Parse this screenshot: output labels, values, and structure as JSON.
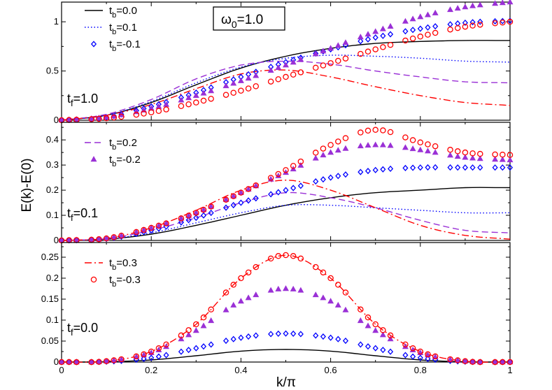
{
  "chart_data": {
    "type": "line",
    "ylabel": "E(k)-E(0)",
    "xlabel": "k/π",
    "omega_box": {
      "text": "ω",
      "sub": "0",
      "tail": "=1.0"
    },
    "x_range": [
      0,
      1
    ],
    "x_ticks": [
      "0",
      "0.2",
      "0.4",
      "0.6",
      "0.8",
      "1"
    ],
    "x_tick_values": [
      0,
      0.2,
      0.4,
      0.6,
      0.8,
      1
    ],
    "panels": [
      {
        "label": {
          "text": "t",
          "sub": "f",
          "tail": "=1.0"
        },
        "ylim": [
          0,
          1.2
        ],
        "y_ticks": [
          "0",
          "0.5",
          "1"
        ],
        "y_tick_values": [
          0,
          0.5,
          1
        ],
        "legend": [
          {
            "series": "tb0",
            "text": "t",
            "sub": "b",
            "tail": "=0.0"
          },
          {
            "series": "tb01",
            "text": "t",
            "sub": "b",
            "tail": "=0.1"
          },
          {
            "series": "tbm01",
            "text": "t",
            "sub": "b",
            "tail": "=-0.1"
          }
        ],
        "series": [
          {
            "id": "tb0",
            "x": [
              0,
              0.1,
              0.2,
              0.3,
              0.4,
              0.5,
              0.6,
              0.7,
              0.8,
              0.9,
              1.0
            ],
            "y": [
              0,
              0.05,
              0.18,
              0.36,
              0.53,
              0.65,
              0.73,
              0.78,
              0.8,
              0.81,
              0.81
            ]
          },
          {
            "id": "tb01",
            "x": [
              0,
              0.1,
              0.2,
              0.3,
              0.4,
              0.5,
              0.6,
              0.7,
              0.8,
              0.9,
              1.0
            ],
            "y": [
              0,
              0.05,
              0.19,
              0.38,
              0.54,
              0.63,
              0.66,
              0.65,
              0.63,
              0.6,
              0.59
            ]
          },
          {
            "id": "tbm01",
            "x": [
              0,
              0.1,
              0.2,
              0.3,
              0.4,
              0.5,
              0.6,
              0.7,
              0.8,
              0.9,
              1.0
            ],
            "y": [
              0,
              0.03,
              0.14,
              0.28,
              0.44,
              0.59,
              0.72,
              0.84,
              0.93,
              0.99,
              1.01
            ]
          },
          {
            "id": "tb02",
            "x": [
              0,
              0.1,
              0.2,
              0.3,
              0.4,
              0.5,
              0.6,
              0.7,
              0.8,
              0.9,
              1.0
            ],
            "y": [
              0,
              0.06,
              0.21,
              0.42,
              0.56,
              0.6,
              0.57,
              0.5,
              0.44,
              0.39,
              0.38
            ]
          },
          {
            "id": "tbm02",
            "x": [
              0,
              0.1,
              0.2,
              0.3,
              0.4,
              0.5,
              0.6,
              0.7,
              0.8,
              0.9,
              1.0
            ],
            "y": [
              0,
              0.03,
              0.12,
              0.25,
              0.4,
              0.56,
              0.73,
              0.9,
              1.05,
              1.15,
              1.2
            ]
          },
          {
            "id": "tb03",
            "x": [
              0,
              0.1,
              0.2,
              0.3,
              0.4,
              0.5,
              0.6,
              0.7,
              0.8,
              0.9,
              1.0
            ],
            "y": [
              0,
              0.05,
              0.16,
              0.32,
              0.47,
              0.51,
              0.44,
              0.34,
              0.25,
              0.18,
              0.15
            ]
          },
          {
            "id": "tbm03",
            "x": [
              0,
              0.1,
              0.2,
              0.3,
              0.4,
              0.5,
              0.6,
              0.7,
              0.8,
              0.9,
              1.0
            ],
            "y": [
              0,
              0.02,
              0.08,
              0.18,
              0.3,
              0.44,
              0.58,
              0.72,
              0.85,
              0.95,
              1.0
            ]
          }
        ]
      },
      {
        "label": {
          "text": "t",
          "sub": "f",
          "tail": "=0.1"
        },
        "ylim": [
          0,
          0.47
        ],
        "y_ticks": [
          "0",
          "0.1",
          "0.2",
          "0.3",
          "0.4"
        ],
        "y_tick_values": [
          0,
          0.1,
          0.2,
          0.3,
          0.4
        ],
        "legend": [
          {
            "series": "tb02",
            "text": "t",
            "sub": "b",
            "tail": "=0.2"
          },
          {
            "series": "tbm02",
            "text": "t",
            "sub": "b",
            "tail": "=-0.2"
          }
        ],
        "series": [
          {
            "id": "tb0",
            "x": [
              0,
              0.1,
              0.2,
              0.3,
              0.4,
              0.5,
              0.6,
              0.7,
              0.8,
              0.9,
              1.0
            ],
            "y": [
              0,
              0.005,
              0.025,
              0.06,
              0.1,
              0.14,
              0.17,
              0.19,
              0.2,
              0.21,
              0.21
            ]
          },
          {
            "id": "tb01",
            "x": [
              0,
              0.1,
              0.2,
              0.3,
              0.4,
              0.5,
              0.6,
              0.7,
              0.8,
              0.9,
              1.0
            ],
            "y": [
              0,
              0.006,
              0.03,
              0.07,
              0.11,
              0.14,
              0.14,
              0.13,
              0.12,
              0.11,
              0.11
            ]
          },
          {
            "id": "tbm01",
            "x": [
              0,
              0.1,
              0.2,
              0.3,
              0.4,
              0.5,
              0.6,
              0.7,
              0.8,
              0.9,
              1.0
            ],
            "y": [
              0,
              0.006,
              0.04,
              0.09,
              0.15,
              0.2,
              0.25,
              0.28,
              0.29,
              0.29,
              0.29
            ]
          },
          {
            "id": "tb02",
            "x": [
              0,
              0.1,
              0.2,
              0.3,
              0.4,
              0.5,
              0.6,
              0.7,
              0.8,
              0.9,
              1.0
            ],
            "y": [
              0,
              0.007,
              0.04,
              0.09,
              0.15,
              0.19,
              0.17,
              0.13,
              0.08,
              0.04,
              0.03
            ]
          },
          {
            "id": "tbm02",
            "x": [
              0,
              0.1,
              0.2,
              0.3,
              0.4,
              0.5,
              0.6,
              0.7,
              0.8,
              0.9,
              1.0
            ],
            "y": [
              0,
              0.008,
              0.05,
              0.11,
              0.19,
              0.27,
              0.35,
              0.38,
              0.36,
              0.33,
              0.32
            ]
          },
          {
            "id": "tb03",
            "x": [
              0,
              0.1,
              0.2,
              0.3,
              0.4,
              0.5,
              0.6,
              0.7,
              0.8,
              0.9,
              1.0
            ],
            "y": [
              0,
              0.008,
              0.05,
              0.12,
              0.2,
              0.24,
              0.2,
              0.13,
              0.06,
              0.02,
              0.005
            ]
          },
          {
            "id": "tbm03",
            "x": [
              0,
              0.1,
              0.2,
              0.3,
              0.4,
              0.5,
              0.6,
              0.7,
              0.8,
              0.9,
              1.0
            ],
            "y": [
              0,
              0.008,
              0.05,
              0.11,
              0.19,
              0.28,
              0.38,
              0.44,
              0.39,
              0.35,
              0.34
            ]
          }
        ]
      },
      {
        "label": {
          "text": "t",
          "sub": "f",
          "tail": "=0.0"
        },
        "ylim": [
          0,
          0.285
        ],
        "y_ticks": [
          "0",
          "0.05",
          "0.1",
          "0.15",
          "0.2",
          "0.25"
        ],
        "y_tick_values": [
          0,
          0.05,
          0.1,
          0.15,
          0.2,
          0.25
        ],
        "legend": [
          {
            "series": "tb03",
            "text": "t",
            "sub": "b",
            "tail": "=0.3"
          },
          {
            "series": "tbm03",
            "text": "t",
            "sub": "b",
            "tail": "=-0.3"
          }
        ],
        "series": [
          {
            "id": "tb0",
            "x": [
              0,
              0.1,
              0.2,
              0.3,
              0.4,
              0.5,
              0.6,
              0.7,
              0.8,
              0.9,
              1.0
            ],
            "y": [
              0,
              0.0005,
              0.005,
              0.015,
              0.026,
              0.03,
              0.026,
              0.015,
              0.005,
              0.0005,
              0
            ]
          },
          {
            "id": "tbm01",
            "x": [
              0,
              0.1,
              0.2,
              0.3,
              0.4,
              0.5,
              0.6,
              0.7,
              0.8,
              0.9,
              1.0
            ],
            "y": [
              0,
              0.001,
              0.01,
              0.033,
              0.058,
              0.068,
              0.058,
              0.033,
              0.01,
              0.001,
              0
            ]
          },
          {
            "id": "tbm02",
            "x": [
              0,
              0.1,
              0.2,
              0.3,
              0.4,
              0.5,
              0.6,
              0.7,
              0.8,
              0.9,
              1.0
            ],
            "y": [
              0,
              0.002,
              0.022,
              0.075,
              0.145,
              0.175,
              0.145,
              0.075,
              0.022,
              0.002,
              0
            ]
          },
          {
            "id": "tb03",
            "x": [
              0,
              0.1,
              0.2,
              0.3,
              0.4,
              0.5,
              0.6,
              0.7,
              0.8,
              0.9,
              1.0
            ],
            "y": [
              0,
              0.002,
              0.025,
              0.09,
              0.2,
              0.255,
              0.2,
              0.09,
              0.025,
              0.002,
              0
            ]
          },
          {
            "id": "tbm03",
            "x": [
              0,
              0.1,
              0.2,
              0.3,
              0.4,
              0.5,
              0.6,
              0.7,
              0.8,
              0.9,
              1.0
            ],
            "y": [
              0,
              0.002,
              0.025,
              0.09,
              0.2,
              0.255,
              0.2,
              0.09,
              0.025,
              0.002,
              0
            ]
          }
        ]
      }
    ],
    "styles": {
      "tb0": {
        "line": "solid",
        "color": "#000000"
      },
      "tb01": {
        "line": "dotted",
        "color": "#0000ff"
      },
      "tbm01": {
        "marker": "diamond",
        "color": "#0000ff"
      },
      "tb02": {
        "line": "dashed",
        "color": "#9a30d6"
      },
      "tbm02": {
        "marker": "triangle",
        "color": "#9a30d6"
      },
      "tb03": {
        "line": "dashdot",
        "color": "#ff0000"
      },
      "tbm03": {
        "marker": "circle",
        "color": "#ff0000"
      }
    }
  }
}
